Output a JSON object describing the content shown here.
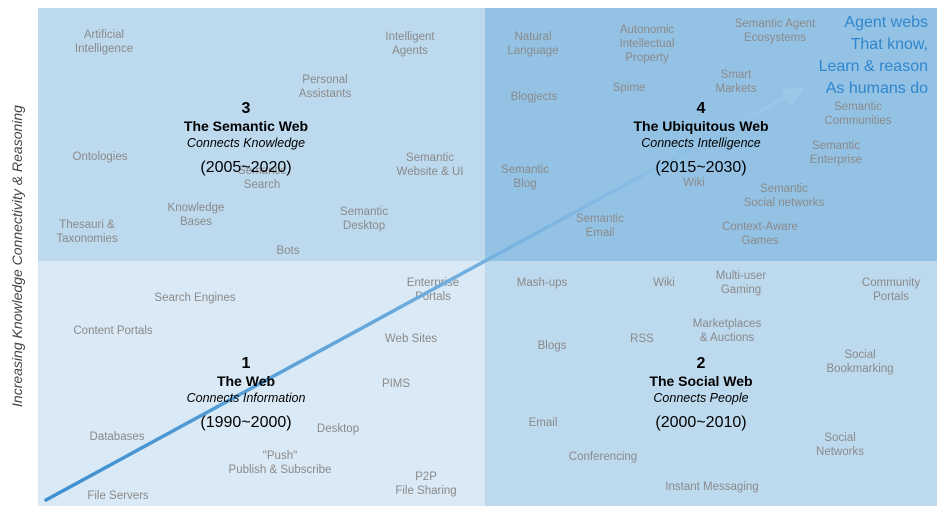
{
  "y_axis_label": "Increasing Knowledge Connectivity & Reasoning",
  "quadrants": {
    "q3": {
      "number": "3",
      "title": "The Semantic Web",
      "subtitle": "Connects Knowledge",
      "years": "(2005~2020)"
    },
    "q4": {
      "number": "4",
      "title": "The Ubiquitous Web",
      "subtitle": "Connects Intelligence",
      "years": "(2015~2030)"
    },
    "q1": {
      "number": "1",
      "title": "The Web",
      "subtitle": "Connects Information",
      "years": "(1990~2000)"
    },
    "q2": {
      "number": "2",
      "title": "The Social Web",
      "subtitle": "Connects People",
      "years": "(2000~2010)"
    }
  },
  "agent_text": [
    "Agent webs",
    "That know,",
    "Learn & reason",
    "As humans do"
  ],
  "terms": {
    "q3": [
      [
        "Artificial",
        "Intelligence"
      ],
      [
        "Intelligent",
        "Agents"
      ],
      [
        "Personal",
        "Assistants"
      ],
      [
        "Ontologies"
      ],
      [
        "Semantic",
        "Website & UI"
      ],
      [
        "Semantic",
        "Search"
      ],
      [
        "Knowledge",
        "Bases"
      ],
      [
        "Semantic",
        "Desktop"
      ],
      [
        "Thesauri &",
        "Taxonomies"
      ],
      [
        "Bots"
      ]
    ],
    "q4": [
      [
        "Natural",
        "Language"
      ],
      [
        "Autonomic",
        "Intellectual",
        "Property"
      ],
      [
        "Semantic Agent",
        "Ecosystems"
      ],
      [
        "Smart",
        "Markets"
      ],
      [
        "Spime"
      ],
      [
        "Blogjects"
      ],
      [
        "Semantic",
        "Communities"
      ],
      [
        "Semantic",
        "Enterprise"
      ],
      [
        "Semantic",
        "Blog"
      ],
      [
        "Wiki"
      ],
      [
        "Semantic",
        "Social networks"
      ],
      [
        "Semantic",
        "Email"
      ],
      [
        "Context-Aware",
        "Games"
      ]
    ],
    "q1": [
      [
        "Search Engines"
      ],
      [
        "Enterprise",
        "Portals"
      ],
      [
        "Content Portals"
      ],
      [
        "Web Sites"
      ],
      [
        "PIMS"
      ],
      [
        "Databases"
      ],
      [
        "Desktop"
      ],
      [
        "\"Push\"",
        "Publish & Subscribe"
      ],
      [
        "P2P",
        "File Sharing"
      ],
      [
        "File Servers"
      ]
    ],
    "q2": [
      [
        "Mash-ups"
      ],
      [
        "Wiki"
      ],
      [
        "Multi-user",
        "Gaming"
      ],
      [
        "Community",
        "Portals"
      ],
      [
        "Marketplaces",
        "& Auctions"
      ],
      [
        "RSS"
      ],
      [
        "Blogs"
      ],
      [
        "Social",
        "Bookmarking"
      ],
      [
        "Email"
      ],
      [
        "Conferencing"
      ],
      [
        "Social",
        "Networks"
      ],
      [
        "Instant Messaging"
      ]
    ]
  }
}
